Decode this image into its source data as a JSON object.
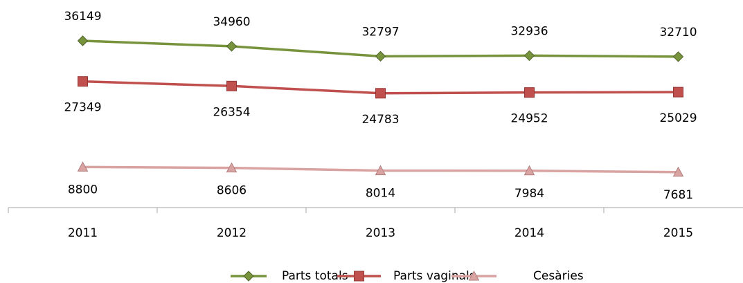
{
  "chart_data": {
    "type": "line",
    "categories": [
      "2011",
      "2012",
      "2013",
      "2014",
      "2015"
    ],
    "series": [
      {
        "name": "Parts totals",
        "color": "#77933c",
        "marker": "diamond",
        "values": [
          36149,
          34960,
          32797,
          32936,
          32710
        ]
      },
      {
        "name": "Parts vaginals",
        "color": "#c0504d",
        "marker": "square",
        "values": [
          27349,
          26354,
          24783,
          24952,
          25029
        ]
      },
      {
        "name": "Cesàries",
        "color": "#d9a3a2",
        "marker": "triangle",
        "values": [
          8800,
          8606,
          8014,
          7984,
          7681
        ]
      }
    ],
    "ylim": [
      0,
      45000
    ],
    "legend": "bottom"
  }
}
